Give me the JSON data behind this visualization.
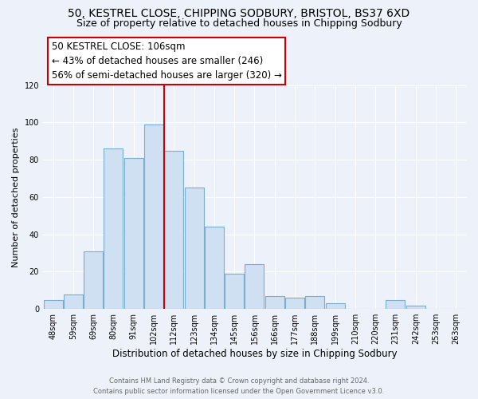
{
  "title": "50, KESTREL CLOSE, CHIPPING SODBURY, BRISTOL, BS37 6XD",
  "subtitle": "Size of property relative to detached houses in Chipping Sodbury",
  "xlabel": "Distribution of detached houses by size in Chipping Sodbury",
  "ylabel": "Number of detached properties",
  "bar_labels": [
    "48sqm",
    "59sqm",
    "69sqm",
    "80sqm",
    "91sqm",
    "102sqm",
    "112sqm",
    "123sqm",
    "134sqm",
    "145sqm",
    "156sqm",
    "166sqm",
    "177sqm",
    "188sqm",
    "199sqm",
    "210sqm",
    "220sqm",
    "231sqm",
    "242sqm",
    "253sqm",
    "263sqm"
  ],
  "bar_heights": [
    5,
    8,
    31,
    86,
    81,
    99,
    85,
    65,
    44,
    19,
    24,
    7,
    6,
    7,
    3,
    0,
    0,
    5,
    2,
    0,
    0
  ],
  "bar_color": "#cfe0f2",
  "bar_edge_color": "#7aadce",
  "vline_color": "#cc0000",
  "annotation_title": "50 KESTREL CLOSE: 106sqm",
  "annotation_line1": "← 43% of detached houses are smaller (246)",
  "annotation_line2": "56% of semi-detached houses are larger (320) →",
  "annotation_box_color": "#ffffff",
  "annotation_box_edge_color": "#cc0000",
  "ylim": [
    0,
    120
  ],
  "yticks": [
    0,
    20,
    40,
    60,
    80,
    100,
    120
  ],
  "footnote1": "Contains HM Land Registry data © Crown copyright and database right 2024.",
  "footnote2": "Contains public sector information licensed under the Open Government Licence v3.0.",
  "bg_color": "#edf2fa",
  "plot_bg_color": "#edf2fa",
  "title_fontsize": 10,
  "subtitle_fontsize": 9,
  "xlabel_fontsize": 8.5,
  "ylabel_fontsize": 8,
  "tick_fontsize": 7,
  "footnote_fontsize": 6,
  "annotation_fontsize": 8.5,
  "grid_color": "#ffffff"
}
